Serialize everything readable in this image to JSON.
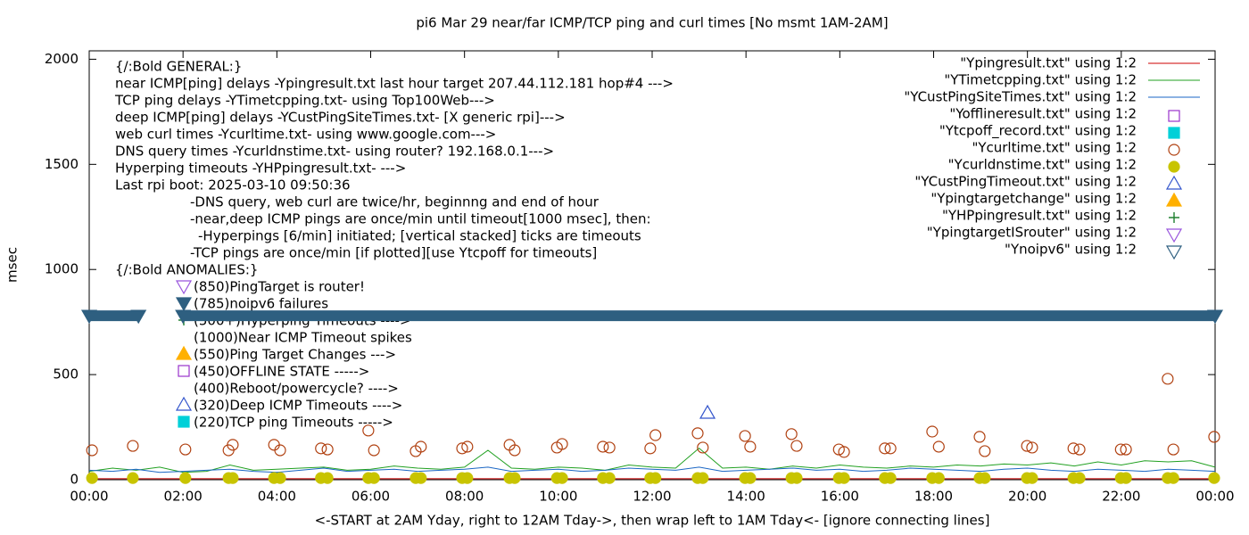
{
  "chart_data": {
    "type": "mixed",
    "title": "pi6 Mar 29  near/far ICMP/TCP ping and curl times [No msmt 1AM-2AM]",
    "x_label": "<-START at 2AM Yday, right to 12AM Tday->, then wrap left to 1AM Tday<- [ignore connecting lines]",
    "y_label": "msec",
    "xlim": [
      0,
      24
    ],
    "ylim": [
      0,
      2040
    ],
    "xticks": [
      {
        "value": 0,
        "label": "00:00"
      },
      {
        "value": 2,
        "label": "02:00"
      },
      {
        "value": 4,
        "label": "04:00"
      },
      {
        "value": 6,
        "label": "06:00"
      },
      {
        "value": 8,
        "label": "08:00"
      },
      {
        "value": 10,
        "label": "10:00"
      },
      {
        "value": 12,
        "label": "12:00"
      },
      {
        "value": 14,
        "label": "14:00"
      },
      {
        "value": 16,
        "label": "16:00"
      },
      {
        "value": 18,
        "label": "18:00"
      },
      {
        "value": 20,
        "label": "20:00"
      },
      {
        "value": 22,
        "label": "22:00"
      },
      {
        "value": 24,
        "label": "00:00"
      }
    ],
    "yticks": [
      0,
      500,
      1000,
      1500,
      2000
    ],
    "legend": "top-right",
    "series": [
      {
        "name": "\"Ypingresult.txt\" using 1:2",
        "color": "#cc0000",
        "marker": "line",
        "x": [
          0,
          24
        ],
        "values": [
          5,
          5
        ]
      },
      {
        "name": "\"YTimetcpping.txt\" using 1:2",
        "color": "#21a021",
        "marker": "line",
        "x": [
          0,
          0.5,
          1,
          1.5,
          2,
          2.5,
          3,
          3.5,
          4,
          4.5,
          5,
          5.5,
          6,
          6.5,
          7,
          7.5,
          8,
          8.5,
          9,
          9.5,
          10,
          10.5,
          11,
          11.5,
          12,
          12.5,
          13,
          13.5,
          14,
          14.5,
          15,
          15.5,
          16,
          16.5,
          17,
          17.5,
          18,
          18.5,
          19,
          19.5,
          20,
          20.5,
          21,
          21.5,
          22,
          22.5,
          23,
          23.5,
          24
        ],
        "values": [
          40,
          55,
          45,
          60,
          35,
          40,
          70,
          45,
          50,
          55,
          60,
          45,
          50,
          65,
          55,
          50,
          60,
          140,
          55,
          50,
          60,
          55,
          45,
          70,
          60,
          55,
          150,
          55,
          60,
          50,
          65,
          55,
          70,
          60,
          55,
          65,
          60,
          70,
          65,
          75,
          70,
          80,
          65,
          85,
          70,
          90,
          85,
          90,
          60
        ]
      },
      {
        "name": "\"YCustPingSiteTimes.txt\" using 1:2",
        "color": "#1a66c4",
        "marker": "line",
        "x": [
          0,
          0.5,
          1,
          1.5,
          2,
          2.5,
          3,
          3.5,
          4,
          4.5,
          5,
          5.5,
          6,
          6.5,
          7,
          7.5,
          8,
          8.5,
          9,
          9.5,
          10,
          10.5,
          11,
          11.5,
          12,
          12.5,
          13,
          13.5,
          14,
          14.5,
          15,
          15.5,
          16,
          16.5,
          17,
          17.5,
          18,
          18.5,
          19,
          19.5,
          20,
          20.5,
          21,
          21.5,
          22,
          22.5,
          23,
          23.5,
          24
        ],
        "values": [
          45,
          40,
          50,
          35,
          40,
          45,
          50,
          40,
          35,
          45,
          55,
          40,
          45,
          50,
          40,
          45,
          50,
          60,
          40,
          45,
          50,
          40,
          45,
          55,
          50,
          45,
          60,
          40,
          45,
          50,
          55,
          45,
          50,
          40,
          45,
          55,
          50,
          45,
          40,
          50,
          55,
          45,
          40,
          50,
          45,
          40,
          50,
          45,
          40
        ]
      },
      {
        "name": "\"Yofflineresult.txt\" using 1:2",
        "color": "#9933cc",
        "marker": "square-open",
        "x": [],
        "values": []
      },
      {
        "name": "\"Ytcpoff_record.txt\" using 1:2",
        "color": "#00d0d8",
        "marker": "square",
        "x": [],
        "values": []
      },
      {
        "name": "\"Ycurltime.txt\" using 1:2",
        "color": "#b04010",
        "marker": "circle-open",
        "x": [
          0.06,
          0.93,
          2.05,
          2.97,
          3.06,
          3.94,
          4.07,
          4.94,
          5.08,
          5.95,
          6.07,
          6.96,
          7.07,
          7.95,
          8.06,
          8.96,
          9.07,
          9.97,
          10.08,
          10.95,
          11.09,
          11.96,
          12.07,
          12.97,
          13.08,
          13.98,
          14.09,
          14.97,
          15.08,
          15.98,
          16.09,
          16.96,
          17.08,
          17.97,
          18.11,
          18.98,
          19.09,
          19.99,
          20.1,
          20.98,
          21.11,
          21.99,
          22.1,
          22.99,
          23.11,
          23.98
        ],
        "values": [
          140,
          161,
          144,
          140,
          166,
          166,
          140,
          149,
          144,
          234,
          140,
          136,
          157,
          149,
          157,
          166,
          140,
          153,
          170,
          157,
          153,
          149,
          212,
          221,
          153,
          208,
          157,
          217,
          161,
          144,
          132,
          149,
          149,
          229,
          157,
          204,
          136,
          161,
          153,
          149,
          144,
          144,
          144,
          480,
          144,
          204
        ]
      },
      {
        "name": "\"Ycurldnstime.txt\" using 1:2",
        "color": "#c8c400",
        "marker": "circle",
        "x": [
          0.06,
          0.93,
          2.05,
          2.97,
          3.06,
          3.94,
          4.07,
          4.94,
          5.08,
          5.95,
          6.07,
          6.96,
          7.07,
          7.95,
          8.06,
          8.96,
          9.07,
          9.97,
          10.08,
          10.95,
          11.09,
          11.96,
          12.07,
          12.97,
          13.08,
          13.98,
          14.09,
          14.97,
          15.08,
          15.98,
          16.09,
          16.96,
          17.08,
          17.97,
          18.11,
          18.98,
          19.09,
          19.99,
          20.1,
          20.98,
          21.11,
          21.99,
          22.1,
          22.99,
          23.11,
          23.98
        ],
        "values": [
          8,
          8,
          8,
          8,
          8,
          8,
          8,
          8,
          8,
          8,
          8,
          8,
          8,
          8,
          8,
          8,
          8,
          8,
          8,
          8,
          8,
          8,
          8,
          8,
          8,
          8,
          8,
          8,
          8,
          8,
          8,
          8,
          8,
          8,
          8,
          8,
          8,
          8,
          8,
          8,
          8,
          8,
          8,
          8,
          8,
          8
        ]
      },
      {
        "name": "\"YCustPingTimeout.txt\" using 1:2",
        "color": "#3355cc",
        "marker": "triangle-up-open",
        "x": [
          13.18
        ],
        "values": [
          318
        ]
      },
      {
        "name": "\"Ypingtargetchange\" using 1:2",
        "color": "#ffb000",
        "marker": "triangle-up",
        "x": [],
        "values": []
      },
      {
        "name": "\"YHPpingresult.txt\" using 1:2",
        "color": "#208030",
        "marker": "plus",
        "x": [],
        "values": []
      },
      {
        "name": "\"YpingtargetISrouter\" using 1:2",
        "color": "#9955dd",
        "marker": "triangle-down-open",
        "x": [],
        "values": []
      },
      {
        "name": "\"Ynoipv6\" using 1:2",
        "color": "#2e5f80",
        "marker": "triangle-down-band",
        "x": [
          0,
          1.05,
          null,
          2.0,
          24
        ],
        "values": [
          780,
          780,
          null,
          780,
          780
        ]
      }
    ],
    "annotations": [
      "{/:Bold GENERAL:}",
      "near ICMP[ping] delays -Ypingresult.txt last hour target 207.44.112.181 hop#4 --->",
      "TCP ping delays -YTimetcpping.txt- using Top100Web--->",
      "deep ICMP[ping] delays -YCustPingSiteTimes.txt- [X generic rpi]--->",
      "web curl times -Ycurltime.txt- using www.google.com--->",
      "DNS query times -Ycurldnstime.txt- using router? 192.168.0.1--->",
      "Hyperping timeouts -YHPpingresult.txt- --->",
      "Last rpi boot: 2025-03-10 09:50:36",
      "-DNS query, web curl are twice/hr, beginnng and end of hour",
      "-near,deep ICMP pings are once/min until timeout[1000 msec], then:",
      "-Hyperpings [6/min] initiated; [vertical stacked] ticks are timeouts",
      "-TCP pings are once/min [if plotted][use Ytcpoff for timeouts]",
      "{/:Bold ANOMALIES:}",
      "(850)PingTarget is router!",
      "(785)noipv6 failures",
      "(500+)Hyperping Timeouts ---->",
      "(1000)Near ICMP Timeout spikes",
      "(550)Ping Target Changes --->",
      "(450)OFFLINE STATE ----->",
      "(400)Reboot/powercycle? ---->",
      "(320)Deep ICMP Timeouts ---->",
      "(220)TCP ping Timeouts ----->"
    ]
  }
}
